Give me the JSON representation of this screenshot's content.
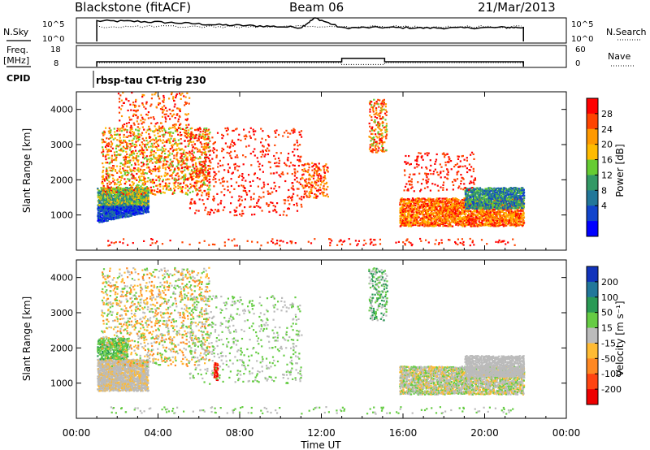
{
  "header": {
    "station": "Blackstone (fitACF)",
    "beam": "Beam 06",
    "date": "21/Mar/2013"
  },
  "panel_labels": {
    "nsky": "N.Sky",
    "nsearch": "N.Search",
    "freq": "Freq.",
    "freq_unit": "[MHz]",
    "nave": "Nave",
    "cpid": "CPID",
    "cpid_value": "rbsp-tau CT-trig 230"
  },
  "chart_data": [
    {
      "type": "line",
      "panel": "noise",
      "left_ticks": [
        "10^5",
        "10^0"
      ],
      "right_ticks": [
        "10^5",
        "10^0"
      ],
      "x_range_hours": [
        0,
        24
      ],
      "data_start_hour": 1.0,
      "data_end_hour": 21.9,
      "series": [
        {
          "name": "N.Sky",
          "x": [
            1.0,
            3,
            5,
            7,
            9,
            11,
            11.7,
            13,
            15,
            17,
            19,
            21,
            21.9
          ],
          "level": [
            0.88,
            0.86,
            0.8,
            0.72,
            0.68,
            0.62,
            1.0,
            0.6,
            0.62,
            0.6,
            0.6,
            0.62,
            0.62
          ]
        }
      ]
    },
    {
      "type": "line",
      "panel": "freq-nave",
      "left_ticks": [
        "18",
        "8"
      ],
      "right_ticks": [
        "60",
        "0"
      ],
      "series": [
        {
          "name": "Freq.",
          "x": [
            1.0,
            13.0,
            13.0,
            15.1,
            15.1,
            21.9
          ],
          "values": [
            10.6,
            10.6,
            12.1,
            12.1,
            10.6,
            10.6
          ]
        },
        {
          "name": "Nave",
          "x": [
            1.0,
            13.0,
            13.0,
            15.1,
            15.1,
            21.9
          ],
          "values": [
            13,
            13,
            8,
            8,
            13,
            13
          ]
        }
      ]
    },
    {
      "type": "scatter",
      "panel": "power",
      "title": "",
      "xlabel": "",
      "ylabel": "Slant Range [km]",
      "ylim": [
        0,
        4500
      ],
      "yticks": [
        1000,
        2000,
        3000,
        4000
      ],
      "colorbar_label": "Power [dB]",
      "colorbar_ticks": [
        "28",
        "24",
        "20",
        "16",
        "12",
        "8",
        "4"
      ],
      "colorbar_colors": [
        "#ff0000",
        "#ff4400",
        "#ff9900",
        "#ffbb00",
        "#66cc33",
        "#339966",
        "#227799",
        "#1144cc",
        "#0000ff"
      ],
      "regions": [
        {
          "t0": 1.0,
          "t1": 3.5,
          "r0": 800,
          "r1": 1300,
          "density": 0.9,
          "levels": [
            6,
            7,
            8
          ],
          "shape": "rise"
        },
        {
          "t0": 1.0,
          "t1": 3.5,
          "r0": 1300,
          "r1": 1800,
          "density": 0.8,
          "levels": [
            3,
            4,
            5,
            6
          ]
        },
        {
          "t0": 1.2,
          "t1": 6.5,
          "r0": 1600,
          "r1": 3500,
          "density": 0.18,
          "levels": [
            0,
            1,
            2,
            3,
            4
          ]
        },
        {
          "t0": 2.0,
          "t1": 5.5,
          "r0": 3500,
          "r1": 4500,
          "density": 0.08,
          "levels": [
            0,
            1,
            2
          ]
        },
        {
          "t0": 5.5,
          "t1": 11.0,
          "r0": 1000,
          "r1": 3500,
          "density": 0.05,
          "levels": [
            0,
            1
          ]
        },
        {
          "t0": 11.0,
          "t1": 12.3,
          "r0": 1500,
          "r1": 2500,
          "density": 0.2,
          "levels": [
            0,
            1,
            2
          ]
        },
        {
          "t0": 14.3,
          "t1": 15.2,
          "r0": 2800,
          "r1": 4300,
          "density": 0.2,
          "levels": [
            0,
            1,
            2,
            4
          ]
        },
        {
          "t0": 15.8,
          "t1": 21.9,
          "r0": 700,
          "r1": 1500,
          "density": 0.55,
          "levels": [
            0,
            1,
            2,
            3
          ]
        },
        {
          "t0": 19.0,
          "t1": 21.9,
          "r0": 1200,
          "r1": 1800,
          "density": 0.7,
          "levels": [
            4,
            5,
            6,
            7
          ]
        },
        {
          "t0": 16.0,
          "t1": 19.5,
          "r0": 1700,
          "r1": 2800,
          "density": 0.08,
          "levels": [
            0,
            1
          ]
        },
        {
          "t0": 1.5,
          "t1": 21.5,
          "r0": 150,
          "r1": 350,
          "density": 0.05,
          "levels": [
            0,
            1
          ]
        }
      ]
    },
    {
      "type": "scatter",
      "panel": "velocity",
      "title": "",
      "xlabel": "Time UT",
      "ylabel": "Slant Range [km]",
      "ylim": [
        0,
        4500
      ],
      "yticks": [
        1000,
        2000,
        3000,
        4000
      ],
      "xticks": [
        "00:00",
        "04:00",
        "08:00",
        "12:00",
        "16:00",
        "20:00",
        "00:00"
      ],
      "colorbar_label": "Velocity [m s⁻¹]",
      "colorbar_ticks": [
        "200",
        "100",
        "50",
        "15",
        "-15",
        "-50",
        "-100",
        "-200"
      ],
      "colorbar_colors": [
        "#1133bb",
        "#22779a",
        "#2a9a55",
        "#66cc44",
        "#bbbbbb",
        "#ffbb33",
        "#ff8822",
        "#ff4411",
        "#ee0000"
      ],
      "regions": [
        {
          "t0": 1.0,
          "t1": 3.5,
          "r0": 800,
          "r1": 1700,
          "density": 0.85,
          "levels": [
            4,
            4,
            4,
            5
          ]
        },
        {
          "t0": 1.0,
          "t1": 2.5,
          "r0": 1700,
          "r1": 2300,
          "density": 0.5,
          "levels": [
            2,
            3,
            3
          ]
        },
        {
          "t0": 1.2,
          "t1": 6.5,
          "r0": 1500,
          "r1": 4300,
          "density": 0.12,
          "levels": [
            3,
            4,
            5,
            6
          ]
        },
        {
          "t0": 6.7,
          "t1": 6.9,
          "r0": 1100,
          "r1": 1600,
          "density": 0.7,
          "levels": [
            7,
            8
          ]
        },
        {
          "t0": 5.5,
          "t1": 11.0,
          "r0": 1000,
          "r1": 3500,
          "density": 0.05,
          "levels": [
            3,
            4
          ]
        },
        {
          "t0": 14.3,
          "t1": 15.2,
          "r0": 2800,
          "r1": 4300,
          "density": 0.2,
          "levels": [
            3,
            4,
            2
          ]
        },
        {
          "t0": 15.8,
          "t1": 21.9,
          "r0": 700,
          "r1": 1500,
          "density": 0.6,
          "levels": [
            4,
            4,
            3,
            5
          ]
        },
        {
          "t0": 19.0,
          "t1": 21.9,
          "r0": 1200,
          "r1": 1800,
          "density": 0.7,
          "levels": [
            4,
            4,
            4
          ]
        },
        {
          "t0": 1.5,
          "t1": 21.5,
          "r0": 150,
          "r1": 350,
          "density": 0.05,
          "levels": [
            3,
            4
          ]
        }
      ]
    }
  ]
}
